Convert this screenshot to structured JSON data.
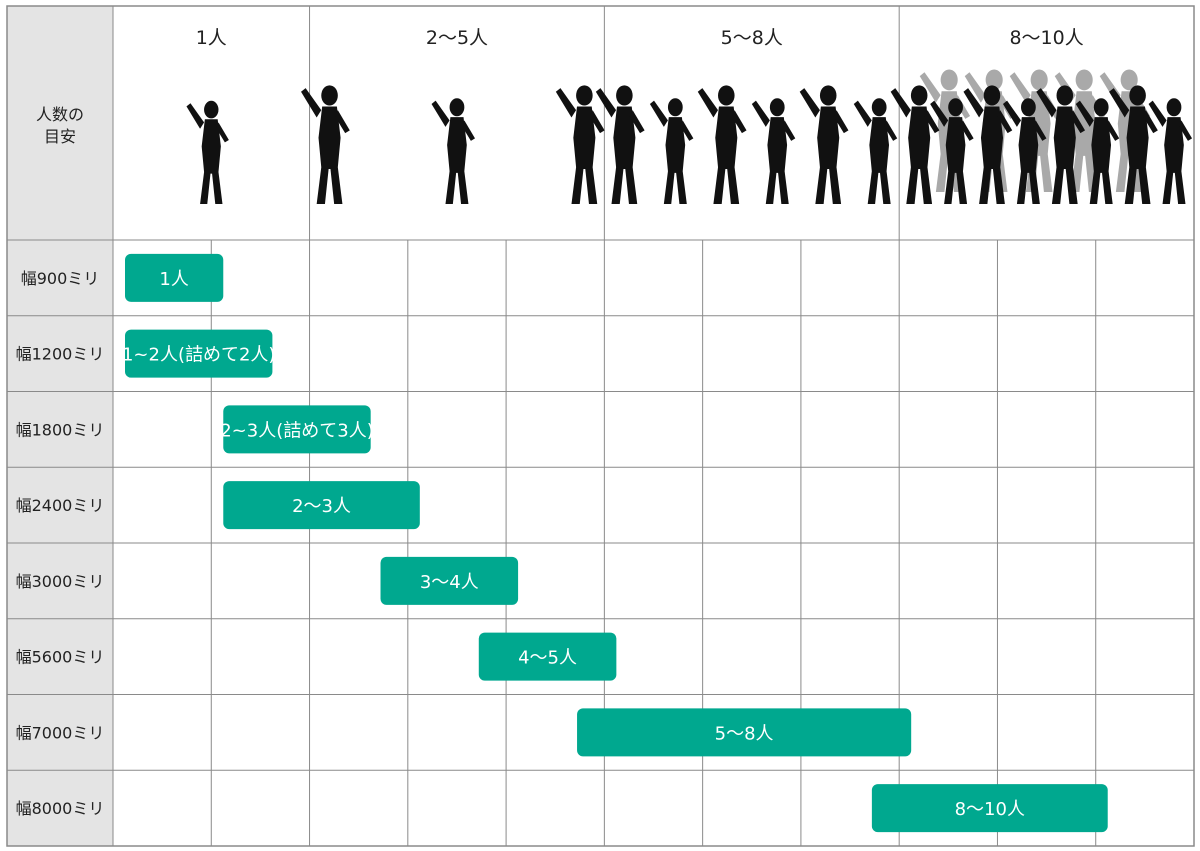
{
  "corner_label": [
    "人数の",
    "目安"
  ],
  "groups": [
    {
      "label": "1人",
      "people": 1
    },
    {
      "label": "2〜5人",
      "people": 3
    },
    {
      "label": "5〜8人",
      "people": 6
    },
    {
      "label": "8〜10人",
      "people": 8
    }
  ],
  "colors": {
    "bar": "#00a88f",
    "silhouette": "#111111",
    "silhouette_bg": "#a9a9a9",
    "label_column": "#e4e4e4"
  },
  "icons": [
    "person-silhouette-icon"
  ],
  "chart_data": {
    "type": "table",
    "title": "",
    "grid_columns": 11,
    "rows": [
      {
        "label": "幅900ミリ",
        "bar": "1人",
        "start": 0,
        "span": 1
      },
      {
        "label": "幅1200ミリ",
        "bar": "1~2人(詰めて2人)",
        "start": 0,
        "span": 1.5
      },
      {
        "label": "幅1800ミリ",
        "bar": "2~3人(詰めて3人)",
        "start": 1,
        "span": 1.5
      },
      {
        "label": "幅2400ミリ",
        "bar": "2〜3人",
        "start": 1,
        "span": 2
      },
      {
        "label": "幅3000ミリ",
        "bar": "3〜4人",
        "start": 2.6,
        "span": 1.4
      },
      {
        "label": "幅5600ミリ",
        "bar": "4〜5人",
        "start": 3.6,
        "span": 1.4
      },
      {
        "label": "幅7000ミリ",
        "bar": "5〜8人",
        "start": 4.6,
        "span": 3.4
      },
      {
        "label": "幅8000ミリ",
        "bar": "8〜10人",
        "start": 7.6,
        "span": 2.4
      }
    ]
  }
}
